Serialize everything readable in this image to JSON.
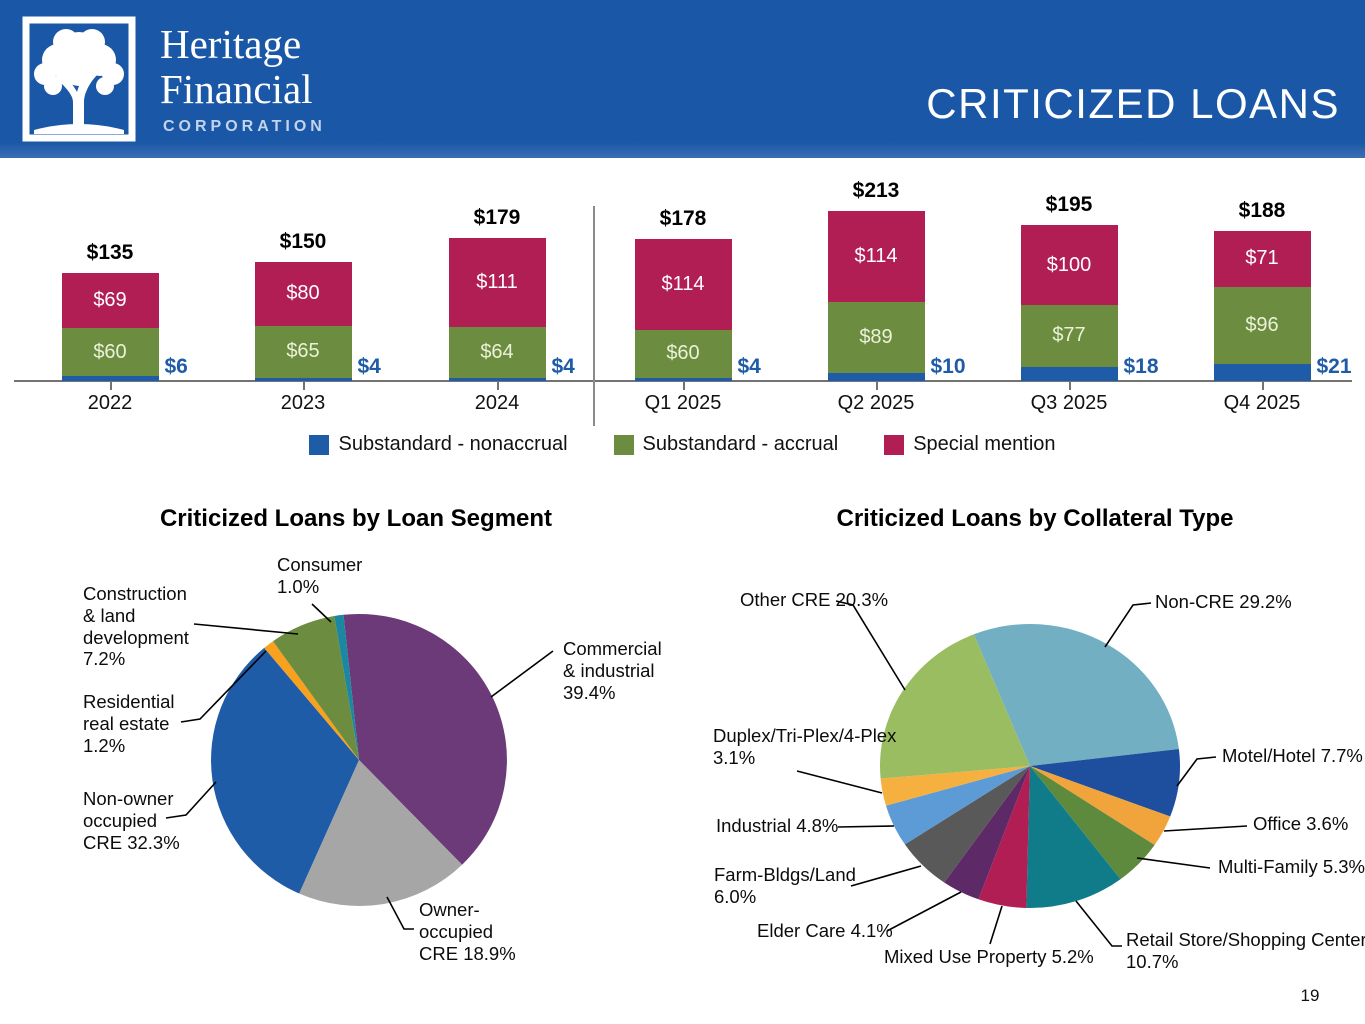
{
  "header": {
    "logo_line1": "Heritage",
    "logo_line2": "Financial",
    "logo_line3": "CORPORATION",
    "title": "CRITICIZED LOANS",
    "bg_color": "#1A57A6"
  },
  "page_number": "19",
  "chart_data": [
    {
      "type": "bar",
      "title": "",
      "stacked": true,
      "value_prefix": "$",
      "categories": [
        "2022",
        "2023",
        "2024",
        "Q1 2025",
        "Q2 2025",
        "Q3 2025",
        "Q4 2025"
      ],
      "series": [
        {
          "name": "Substandard - nonaccrual",
          "color": "#1E5CA8",
          "values": [
            6,
            4,
            4,
            4,
            10,
            18,
            21
          ]
        },
        {
          "name": "Substandard - accrual",
          "color": "#6C8C3F",
          "values": [
            60,
            65,
            64,
            60,
            89,
            77,
            96
          ]
        },
        {
          "name": "Special mention",
          "color": "#B11E53",
          "values": [
            69,
            80,
            111,
            114,
            114,
            100,
            71
          ]
        }
      ],
      "totals": [
        135,
        150,
        179,
        178,
        213,
        195,
        188
      ],
      "legend_position": "bottom",
      "grid": false
    },
    {
      "type": "pie",
      "title": "Criticized Loans by Loan Segment",
      "start_angle": 354,
      "slices": [
        {
          "name": "Commercial & industrial",
          "pct": 39.4,
          "color": "#6C3A78",
          "display": "Commercial\n& industrial\n39.4%"
        },
        {
          "name": "Owner-occupied CRE",
          "pct": 18.9,
          "color": "#A6A6A6",
          "display": "Owner-\noccupied\nCRE 18.9%"
        },
        {
          "name": "Non-owner occupied CRE",
          "pct": 32.3,
          "color": "#1E5CA8",
          "display": "Non-owner\noccupied\nCRE 32.3%"
        },
        {
          "name": "Residential real estate",
          "pct": 1.2,
          "color": "#F7A11E",
          "display": "Residential\nreal estate\n1.2%"
        },
        {
          "name": "Construction & land development",
          "pct": 7.2,
          "color": "#6C8C3F",
          "display": "Construction\n& land\ndevelopment\n7.2%"
        },
        {
          "name": "Consumer",
          "pct": 1.0,
          "color": "#1B87A1",
          "display": "Consumer\n1.0%"
        }
      ]
    },
    {
      "type": "pie",
      "title": "Criticized Loans by Collateral Type",
      "start_angle": 338,
      "slices": [
        {
          "name": "Non-CRE",
          "pct": 29.2,
          "color": "#72AFC3",
          "display": "Non-CRE 29.2%"
        },
        {
          "name": "Motel/Hotel",
          "pct": 7.7,
          "color": "#1E4F9E",
          "display": "Motel/Hotel 7.7%"
        },
        {
          "name": "Office",
          "pct": 3.6,
          "color": "#F2A43C",
          "display": "Office 3.6%"
        },
        {
          "name": "Multi-Family",
          "pct": 5.3,
          "color": "#5E8A3D",
          "display": "Multi-Family 5.3%"
        },
        {
          "name": "Retail Store/Shopping Center",
          "pct": 10.7,
          "color": "#107C89",
          "display": "Retail Store/Shopping Center\n10.7%"
        },
        {
          "name": "Mixed Use Property",
          "pct": 5.2,
          "color": "#B11E53",
          "display": "Mixed Use Property 5.2%"
        },
        {
          "name": "Elder Care",
          "pct": 4.1,
          "color": "#5D2A67",
          "display": "Elder Care 4.1%"
        },
        {
          "name": "Farm-Bldgs/Land",
          "pct": 6.0,
          "color": "#595959",
          "display": "Farm-Bldgs/Land\n6.0%"
        },
        {
          "name": "Industrial",
          "pct": 4.8,
          "color": "#5C9BD6",
          "display": "Industrial 4.8%"
        },
        {
          "name": "Duplex/Tri-Plex/4-Plex",
          "pct": 3.1,
          "color": "#F6B040",
          "display": "Duplex/Tri-Plex/4-Plex\n3.1%"
        },
        {
          "name": "Other CRE",
          "pct": 20.3,
          "color": "#9BBD61",
          "display": "Other CRE 20.3%"
        }
      ]
    }
  ]
}
